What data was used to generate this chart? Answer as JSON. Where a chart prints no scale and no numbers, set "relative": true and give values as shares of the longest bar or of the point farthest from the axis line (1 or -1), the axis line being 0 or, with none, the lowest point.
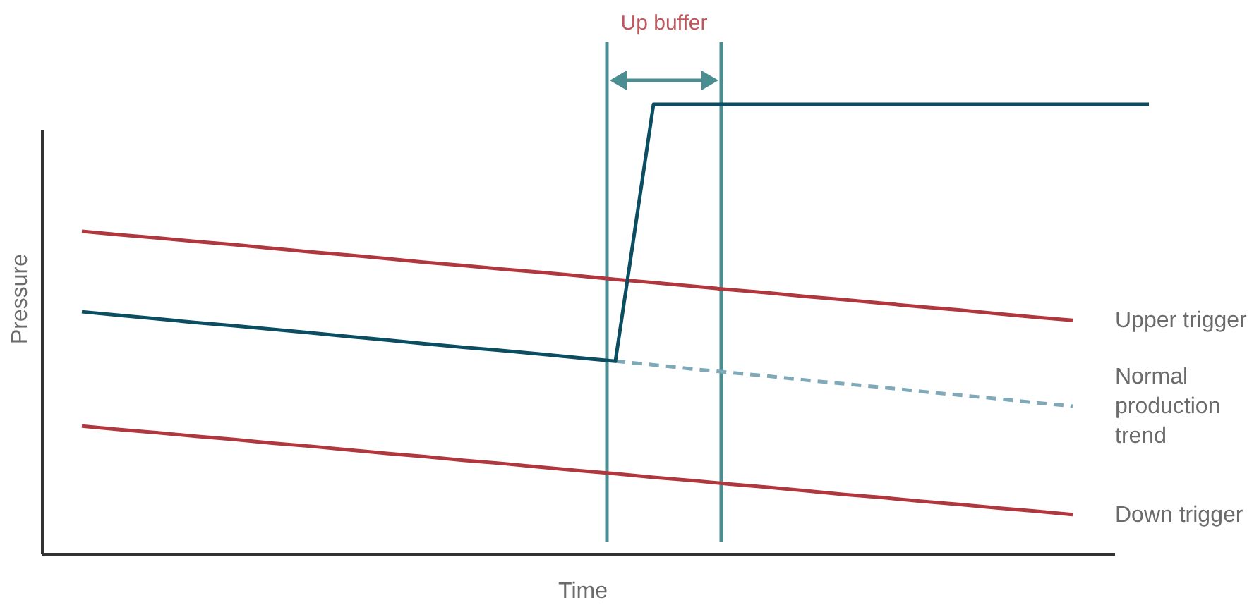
{
  "chart_data": {
    "type": "line",
    "relative": true,
    "xlabel": "Time",
    "ylabel": "Pressure",
    "categories": [
      null,
      null,
      null,
      null,
      null,
      null,
      null,
      null,
      null,
      null,
      null,
      null,
      null,
      null,
      null,
      null,
      null,
      null,
      null,
      null,
      null,
      null,
      null,
      null,
      null,
      null,
      null,
      null,
      null
    ],
    "series": [
      {
        "name": "Upper trigger",
        "color": "#b0373d",
        "values": [
          0.718,
          0.71,
          0.703,
          0.695,
          0.688,
          0.68,
          0.672,
          0.665,
          0.657,
          0.649,
          0.642,
          0.634,
          0.627,
          0.619,
          0.611,
          0.604,
          0.596,
          0.588,
          0.581,
          0.573,
          0.566,
          0.558,
          0.55,
          0.543,
          0.535,
          0.527,
          0.52,
          null,
          null
        ]
      },
      {
        "name": "Normal production trend",
        "color": "#7fa9b9",
        "line_style": "dashed",
        "values": [
          null,
          null,
          null,
          null,
          null,
          null,
          null,
          null,
          null,
          null,
          null,
          null,
          null,
          null,
          0.429,
          0.421,
          0.412,
          0.404,
          0.396,
          0.387,
          0.379,
          0.371,
          0.362,
          0.354,
          0.346,
          0.337,
          0.329,
          null,
          null
        ]
      },
      {
        "name": "Down trigger",
        "color": "#b0373d",
        "values": [
          0.285,
          0.277,
          0.27,
          0.262,
          0.255,
          0.247,
          0.24,
          0.232,
          0.224,
          0.217,
          0.209,
          0.202,
          0.194,
          0.186,
          0.179,
          0.171,
          0.164,
          0.156,
          0.149,
          0.141,
          0.133,
          0.126,
          0.118,
          0.111,
          0.103,
          0.096,
          0.088,
          null,
          null
        ]
      },
      {
        "color": "#0b4d61",
        "values": [
          0.539,
          0.531,
          0.523,
          0.515,
          0.508,
          0.5,
          0.492,
          0.484,
          0.476,
          0.468,
          0.46,
          0.453,
          0.445,
          0.437,
          0.429,
          1,
          1,
          1,
          1,
          1,
          1,
          1,
          1,
          1,
          1,
          1,
          1,
          1,
          1
        ]
      }
    ],
    "annotations": [
      "Up buffer"
    ]
  }
}
